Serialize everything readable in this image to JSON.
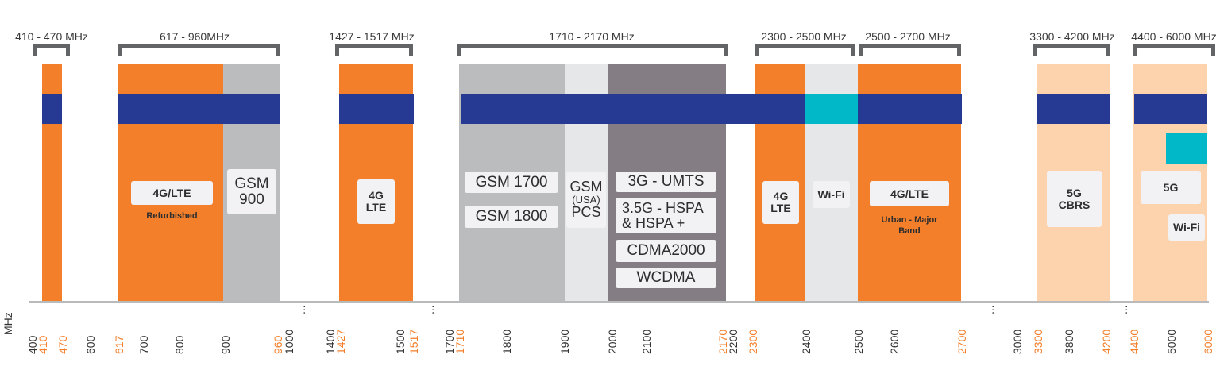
{
  "colors": {
    "lte_orange": "#f47f2b",
    "blue_band": "#263a94",
    "gsm_gray": "#bbbcbe",
    "pcs_light": "#e6e7e8",
    "umts_dark": "#847d83",
    "five_g_peach": "#fdd3ae",
    "wifi_cyan": "#00b8c8",
    "bracket": "#636466"
  },
  "ranges": [
    "410 - 470 MHz",
    "617 - 960MHz",
    "1427 - 1517 MHz",
    "1710 - 2170 MHz",
    "2300 - 2500 MHz",
    "2500 - 2700 MHz",
    "3300 - 4200 MHz",
    "4400 - 6000 MHz"
  ],
  "labels": {
    "lte_refurb": "4G/LTE",
    "refurbished": "Refurbished",
    "gsm900_a": "GSM",
    "gsm900_b": "900",
    "lte1427_a": "4G",
    "lte1427_b": "LTE",
    "gsm1700": "GSM 1700",
    "gsm1800": "GSM 1800",
    "pcs_a": "GSM",
    "pcs_b": "(USA)",
    "pcs_c": "PCS",
    "umts": "3G - UMTS",
    "hspa_a": "3.5G - HSPA",
    "hspa_b": "& HSPA +",
    "cdma": "CDMA2000",
    "wcdma": "WCDMA",
    "lte2300_a": "4G",
    "lte2300_b": "LTE",
    "wifi24": "Wi-Fi",
    "lte_urban": "4G/LTE",
    "urban_a": "Urban - Major",
    "urban_b": "Band",
    "cbrs_a": "5G",
    "cbrs_b": "CBRS",
    "fiveg": "5G",
    "wifi5": "Wi-Fi"
  },
  "axis": {
    "unit": "MHz",
    "ticks": [
      {
        "label": "400",
        "hl": false
      },
      {
        "label": "410",
        "hl": true
      },
      {
        "label": "470",
        "hl": true
      },
      {
        "label": "600",
        "hl": false
      },
      {
        "label": "617",
        "hl": true
      },
      {
        "label": "700",
        "hl": false
      },
      {
        "label": "800",
        "hl": false
      },
      {
        "label": "900",
        "hl": false
      },
      {
        "label": "960",
        "hl": true
      },
      {
        "label": "1000",
        "hl": false
      },
      {
        "label": "...",
        "hl": false
      },
      {
        "label": "1400",
        "hl": false
      },
      {
        "label": "1427",
        "hl": true
      },
      {
        "label": "1500",
        "hl": false
      },
      {
        "label": "1517",
        "hl": true
      },
      {
        "label": "...",
        "hl": false
      },
      {
        "label": "1700",
        "hl": false
      },
      {
        "label": "1710",
        "hl": true
      },
      {
        "label": "1800",
        "hl": false
      },
      {
        "label": "1900",
        "hl": false
      },
      {
        "label": "2000",
        "hl": false
      },
      {
        "label": "2100",
        "hl": false
      },
      {
        "label": "2170",
        "hl": true
      },
      {
        "label": "2200",
        "hl": false
      },
      {
        "label": "2300",
        "hl": true
      },
      {
        "label": "2400",
        "hl": false
      },
      {
        "label": "2500",
        "hl": false
      },
      {
        "label": "2600",
        "hl": false
      },
      {
        "label": "2700",
        "hl": true
      },
      {
        "label": "...",
        "hl": false
      },
      {
        "label": "3000",
        "hl": false
      },
      {
        "label": "3300",
        "hl": true
      },
      {
        "label": "3800",
        "hl": false
      },
      {
        "label": "4200",
        "hl": true
      },
      {
        "label": "...",
        "hl": false
      },
      {
        "label": "4400",
        "hl": true
      },
      {
        "label": "5000",
        "hl": false
      },
      {
        "label": "6000",
        "hl": true
      }
    ]
  }
}
